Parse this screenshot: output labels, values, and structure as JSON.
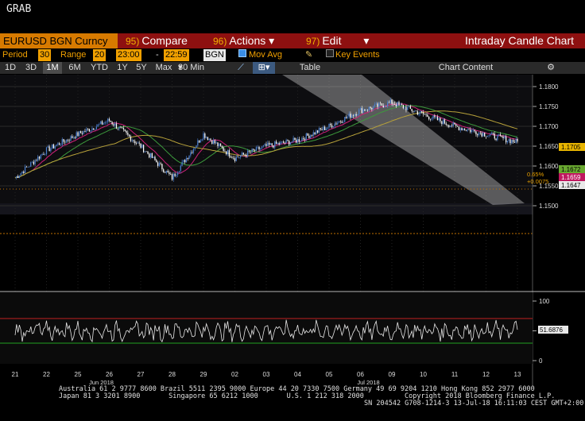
{
  "window": {
    "title": "GRAB"
  },
  "titlebar": {
    "ticker": "EURUSD BGN Curncy",
    "menus": [
      {
        "num": "95)",
        "label": "Compare",
        "arrow": ""
      },
      {
        "num": "96)",
        "label": "Actions",
        "arrow": "▾"
      },
      {
        "num": "97)",
        "label": "Edit",
        "arrow": "▾"
      }
    ],
    "chart_title": "Intraday Candle Chart"
  },
  "params": {
    "period_label": "Period",
    "period_value": "30",
    "range_label": "Range",
    "range_value": "20",
    "start_time": "23:00",
    "dash": "-",
    "end_time": "22:59",
    "source": "BGN",
    "mov_avg_label": "Mov Avg",
    "mov_avg_checked": true,
    "key_events_label": "Key Events",
    "key_events_checked": false
  },
  "toolbar": {
    "ranges": [
      "1D",
      "3D",
      "1M",
      "6M",
      "YTD",
      "1Y",
      "5Y",
      "Max"
    ],
    "selected_range": "1M",
    "interval_value": "30 Min",
    "table_label": "Table",
    "chart_content_label": "Chart Content"
  },
  "price_axis": {
    "ticks": [
      "1.1800",
      "1.1750",
      "1.1700",
      "1.1650",
      "1.1600",
      "1.1550",
      "1.1500"
    ],
    "labels": {
      "ma_high": "1.1705",
      "ma_mid": "1.1672",
      "last_price": "1.1659",
      "ma_low": "1.1647"
    },
    "change_pct": "0.65%",
    "change_abs": "+0.0075"
  },
  "oscillator_axis": {
    "ticks": [
      "100",
      "50",
      "0"
    ],
    "last_value": "51.6876"
  },
  "x_axis": {
    "days": [
      "21",
      "22",
      "25",
      "26",
      "27",
      "28",
      "29",
      "02",
      "03",
      "04",
      "05",
      "06",
      "09",
      "10",
      "11",
      "12",
      "13"
    ],
    "months": [
      "Jun 2018",
      "Jul 2018"
    ]
  },
  "colors": {
    "candle_up": "#4a7fd0",
    "candle_down": "#ffffff",
    "ma_short": "#d0207a",
    "ma_mid": "#3c9a3c",
    "ma_long": "#b8a23a",
    "osc_upper": "#c02020",
    "osc_lower": "#20a020",
    "ref_line": "#c07000"
  },
  "chart_data": {
    "type": "line",
    "title": "Intraday Candle Chart",
    "ticker": "EURUSD BGN Curncy",
    "ylim": [
      1.148,
      1.182
    ],
    "x": [
      "21",
      "22",
      "25",
      "26",
      "27",
      "28",
      "29",
      "02",
      "03",
      "04",
      "05",
      "06",
      "09",
      "10",
      "11",
      "12",
      "13"
    ],
    "series": [
      {
        "name": "EURUSD",
        "values": [
          1.157,
          1.164,
          1.168,
          1.1715,
          1.165,
          1.157,
          1.168,
          1.162,
          1.165,
          1.1665,
          1.17,
          1.174,
          1.176,
          1.173,
          1.17,
          1.168,
          1.166
        ]
      }
    ],
    "oscillator": {
      "ylim": [
        0,
        100
      ],
      "upper": 70,
      "lower": 30,
      "last": 51.6876
    }
  },
  "footer": {
    "line1": "Australia 61 2 9777 8600 Brazil 5511 2395 9000 Europe 44 20 7330 7500 Germany 49 69 9204 1210 Hong Kong 852 2977 6000",
    "line2": "Japan 81 3 3201 8900       Singapore 65 6212 1000       U.S. 1 212 318 2000          Copyright 2018 Bloomberg Finance L.P.",
    "line3": "SN 204542 G708-1214-3 13-Jul-18 16:11:03 CEST GMT+2:00"
  }
}
